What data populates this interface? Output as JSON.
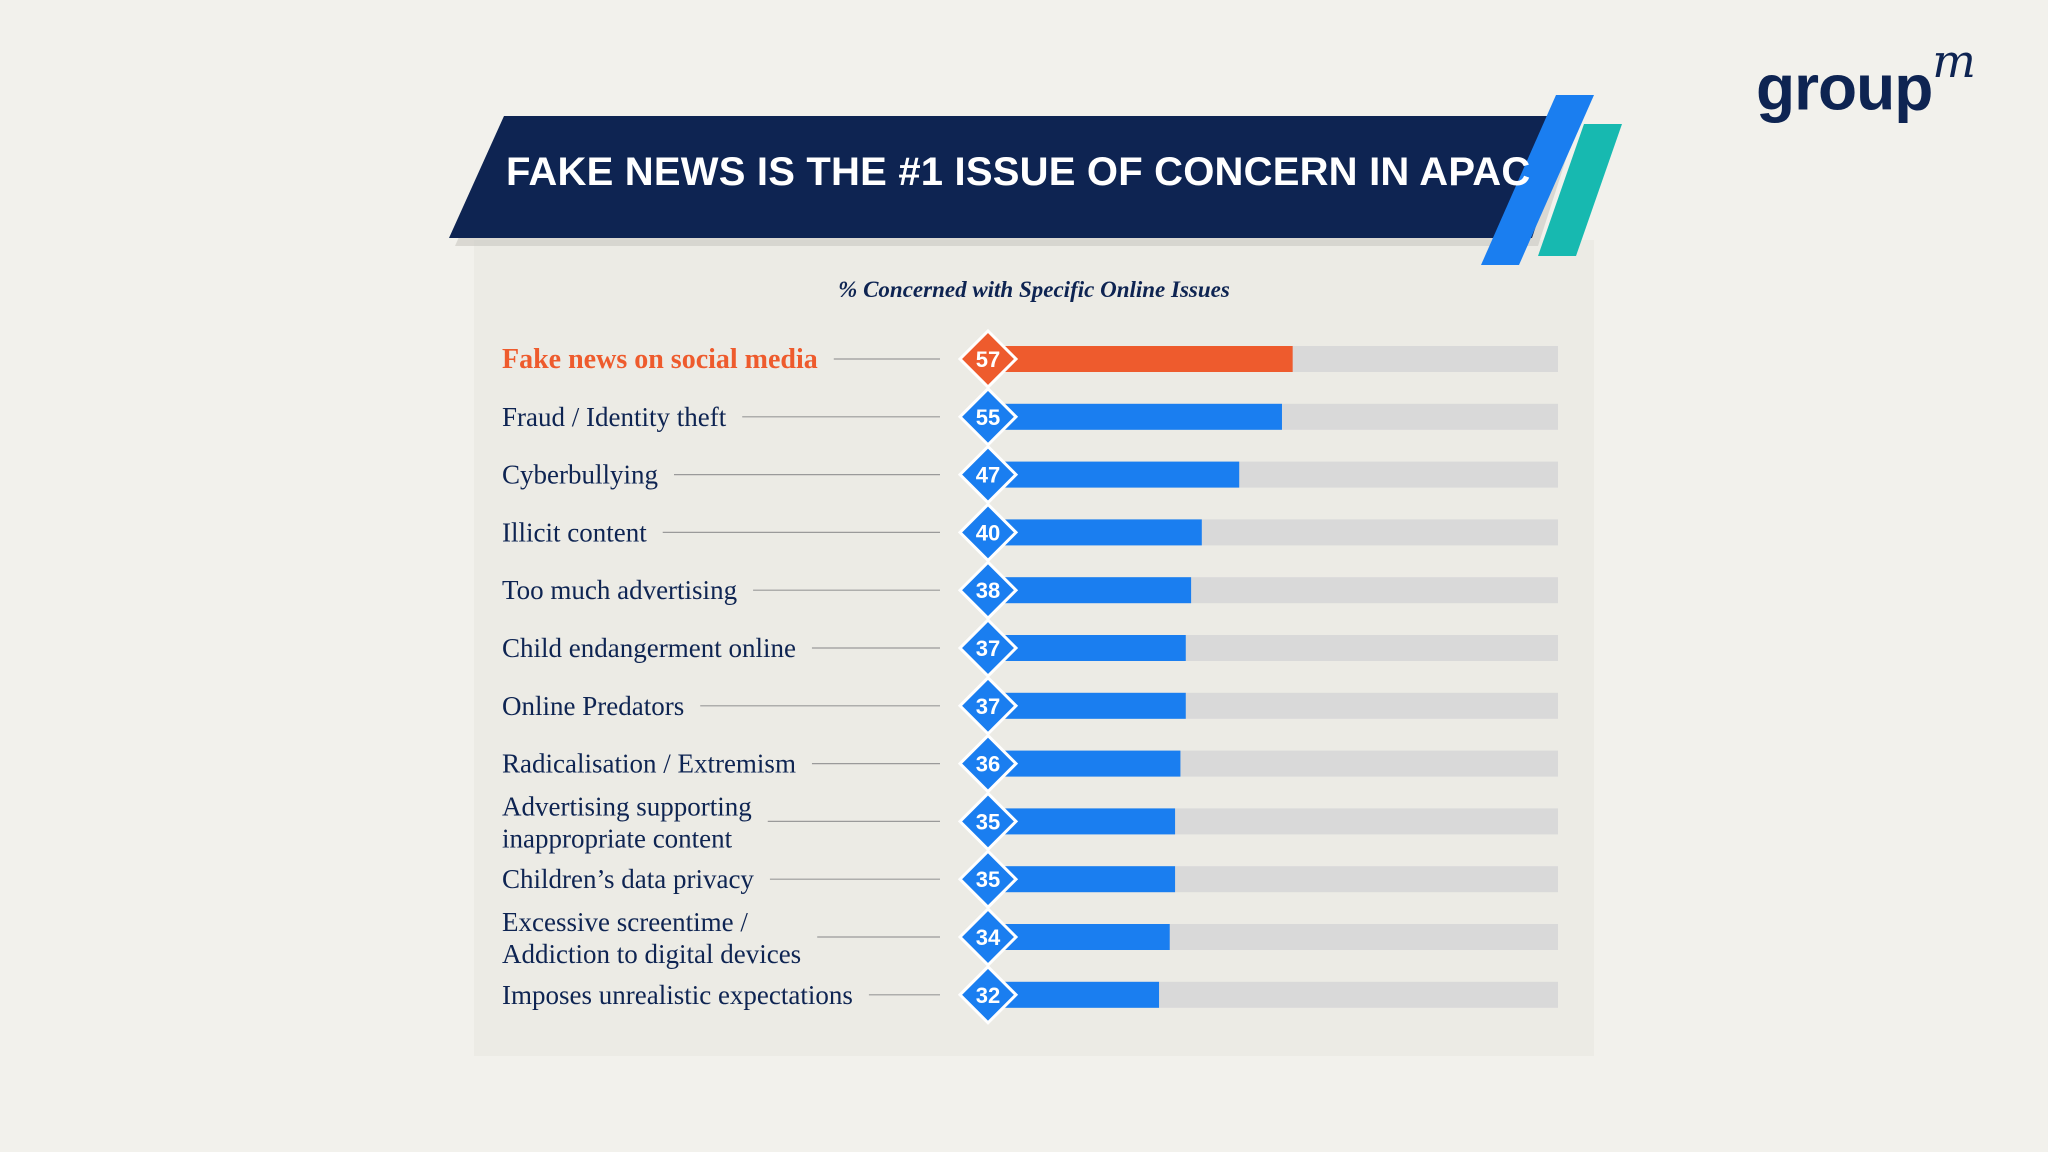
{
  "brand": {
    "logo_text": "group",
    "logo_sup": "m"
  },
  "banner": {
    "title": "FAKE NEWS IS THE #1 ISSUE OF CONCERN IN APAC"
  },
  "colors": {
    "navy": "#0e2452",
    "highlight": "#ee5b2d",
    "bar": "#1a7ef0",
    "track": "#d9d9d9",
    "accent_blue": "#1a7ef0",
    "accent_teal": "#17b9b0",
    "background": "#f2f1ec"
  },
  "chart_data": {
    "type": "bar",
    "orientation": "horizontal",
    "title": "% Concerned with Specific Online Issues",
    "xlim": [
      0,
      100
    ],
    "grid": false,
    "highlight_index": 0,
    "categories": [
      [
        "Fake news on social media"
      ],
      [
        "Fraud / Identity theft"
      ],
      [
        "Cyberbullying"
      ],
      [
        "Illicit content"
      ],
      [
        "Too much advertising"
      ],
      [
        "Child endangerment online"
      ],
      [
        "Online Predators"
      ],
      [
        "Radicalisation / Extremism"
      ],
      [
        "Advertising supporting",
        "inappropriate content"
      ],
      [
        "Children’s data privacy"
      ],
      [
        "Excessive screentime /",
        "Addiction to digital devices"
      ],
      [
        "Imposes unrealistic expectations"
      ]
    ],
    "values": [
      57,
      55,
      47,
      40,
      38,
      37,
      37,
      36,
      35,
      35,
      34,
      32
    ]
  }
}
